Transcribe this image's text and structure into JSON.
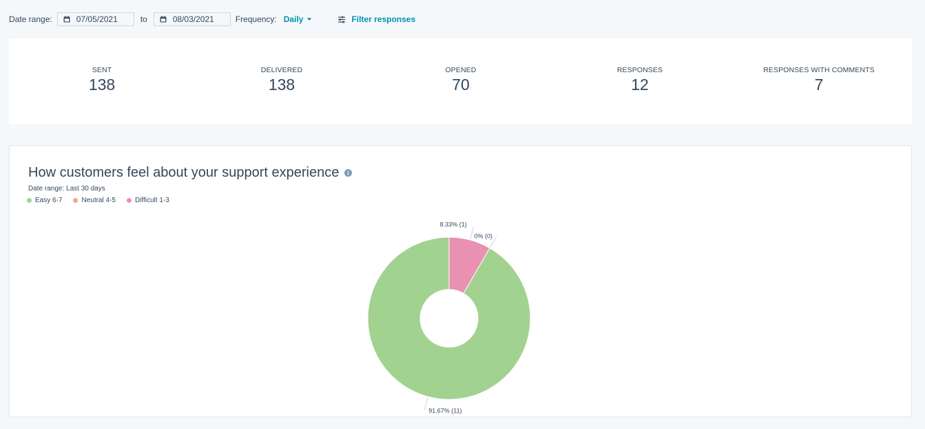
{
  "toolbar": {
    "date_range_label": "Date range:",
    "start_date": "07/05/2021",
    "to_label": "to",
    "end_date": "08/03/2021",
    "frequency_label": "Frequency:",
    "frequency_value": "Daily",
    "filter_label": "Filter responses"
  },
  "stats": [
    {
      "label": "SENT",
      "value": "138"
    },
    {
      "label": "DELIVERED",
      "value": "138"
    },
    {
      "label": "OPENED",
      "value": "70"
    },
    {
      "label": "RESPONSES",
      "value": "12"
    },
    {
      "label": "RESPONSES WITH COMMENTS",
      "value": "7"
    }
  ],
  "chart_data": {
    "type": "pie",
    "title": "How customers feel about your support experience",
    "subtitle": "Date range: Last 30 days",
    "legend_position": "top-left",
    "categories": [
      "Easy 6-7",
      "Neutral 4-5",
      "Difficult 1-3"
    ],
    "values": [
      11,
      0,
      1
    ],
    "percent": [
      91.67,
      0,
      8.33
    ],
    "colors": [
      "#a2d28f",
      "#f2a58a",
      "#ea90b1"
    ],
    "data_labels": [
      "91.67% (11)",
      "0% (0)",
      "8.33% (1)"
    ]
  }
}
